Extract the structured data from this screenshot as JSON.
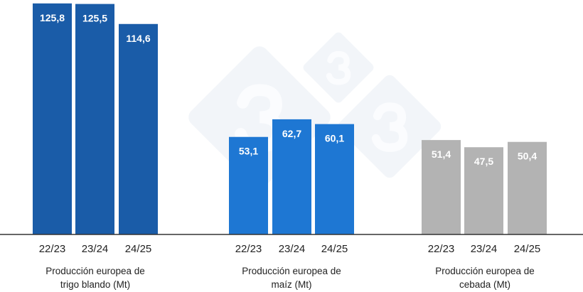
{
  "chart_data": {
    "type": "bar",
    "title": "",
    "xlabel": "",
    "ylabel": "",
    "ylim": [
      0,
      126
    ],
    "grid": false,
    "legend": "none",
    "groups": [
      {
        "label_line1": "Producción europea de",
        "label_line2": "trigo blando (Mt)",
        "color": "#1a5ca8",
        "categories": [
          "22/23",
          "23/24",
          "24/25"
        ],
        "values": [
          125.8,
          125.5,
          114.6
        ],
        "data_labels": [
          "125,8",
          "125,5",
          "114,6"
        ]
      },
      {
        "label_line1": "Producción europea de",
        "label_line2": "maíz (Mt)",
        "color": "#1e77d3",
        "categories": [
          "22/23",
          "23/24",
          "24/25"
        ],
        "values": [
          53.1,
          62.7,
          60.1
        ],
        "data_labels": [
          "53,1",
          "62,7",
          "60,1"
        ]
      },
      {
        "label_line1": "Producción europea de",
        "label_line2": "cebada (Mt)",
        "color": "#b3b3b3",
        "categories": [
          "22/23",
          "23/24",
          "24/25"
        ],
        "values": [
          51.4,
          47.5,
          50.4
        ],
        "data_labels": [
          "51,4",
          "47,5",
          "50,4"
        ]
      }
    ],
    "watermark": {
      "text": "3",
      "color": "#f2f5f9"
    }
  }
}
